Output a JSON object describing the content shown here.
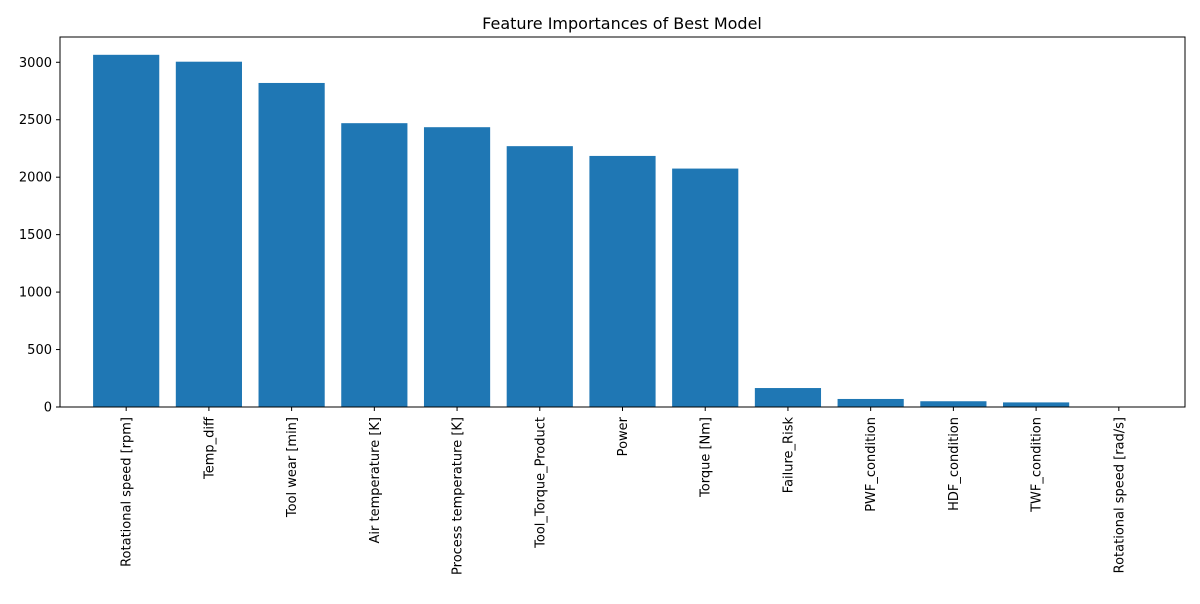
{
  "chart_data": {
    "type": "bar",
    "title": "Feature Importances of Best Model",
    "xlabel": "",
    "ylabel": "",
    "ylim": [
      0,
      3220
    ],
    "yticks": [
      0,
      500,
      1000,
      1500,
      2000,
      2500,
      3000
    ],
    "ytick_labels": [
      "0",
      "500",
      "1000",
      "1500",
      "2000",
      "2500",
      "3000"
    ],
    "categories": [
      "Rotational speed [rpm]",
      "Temp_diff",
      "Tool wear [min]",
      "Air temperature [K]",
      "Process temperature [K]",
      "Tool_Torque_Product",
      "Power",
      "Torque [Nm]",
      "Failure_Risk",
      "PWF_condition",
      "HDF_condition",
      "TWF_condition",
      "Rotational speed [rad/s]"
    ],
    "values": [
      3065,
      3005,
      2820,
      2470,
      2435,
      2270,
      2185,
      2075,
      165,
      70,
      50,
      40,
      0
    ],
    "bar_color": "#1f77b4",
    "grid": false,
    "legend": "none"
  }
}
